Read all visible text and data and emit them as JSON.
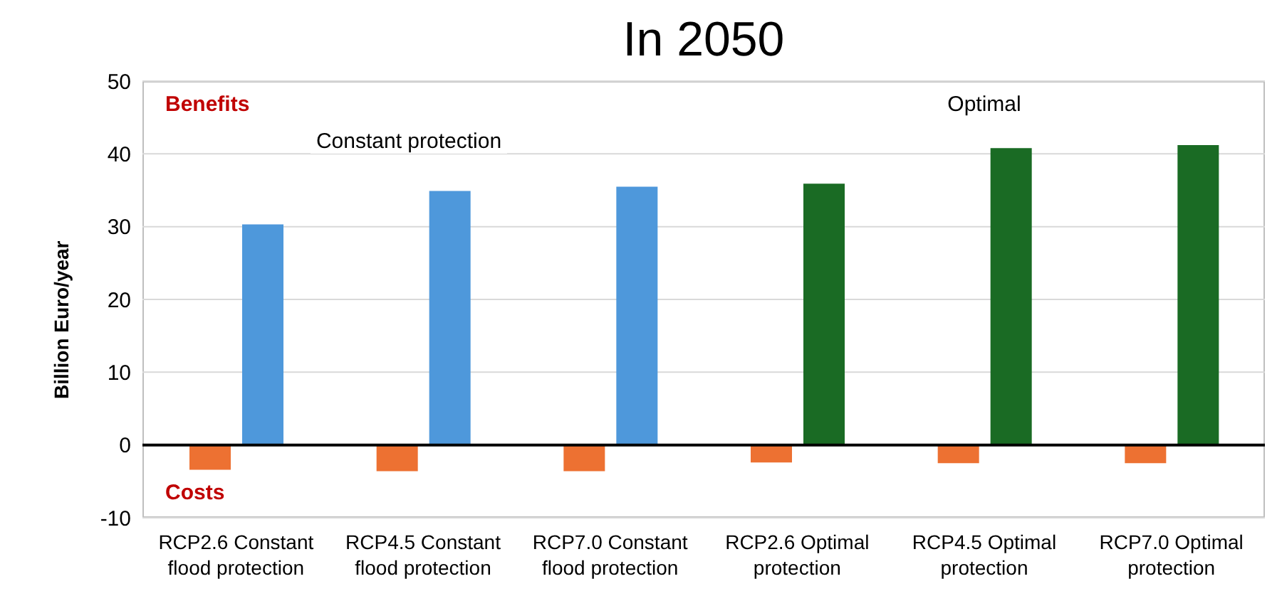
{
  "chart_data": {
    "type": "bar",
    "title": "In 2050",
    "ylabel": "Billion Euro/year",
    "categories": [
      "RCP2.6 Constant flood protection",
      "RCP4.5 Constant flood protection",
      "RCP7.0 Constant flood protection",
      "RCP2.6 Optimal protection",
      "RCP4.5 Optimal protection",
      "RCP7.0 Optimal protection"
    ],
    "series": [
      {
        "color": "#ed7132",
        "values": [
          -3.4,
          -3.6,
          -3.6,
          -2.4,
          -2.5,
          -2.5
        ]
      },
      {
        "colors": [
          "#4e98db",
          "#4e98db",
          "#4e98db",
          "#1a6b24",
          "#1a6b24",
          "#1a6b24"
        ],
        "values": [
          30.3,
          34.9,
          35.5,
          35.9,
          40.8,
          41.2
        ]
      }
    ],
    "ylim": [
      -10,
      50
    ],
    "yticks": [
      -10,
      0,
      10,
      20,
      30,
      40,
      50
    ],
    "grid": "y",
    "annotations": [
      "Benefits",
      "Costs",
      "Constant protection",
      "Optimal"
    ]
  }
}
